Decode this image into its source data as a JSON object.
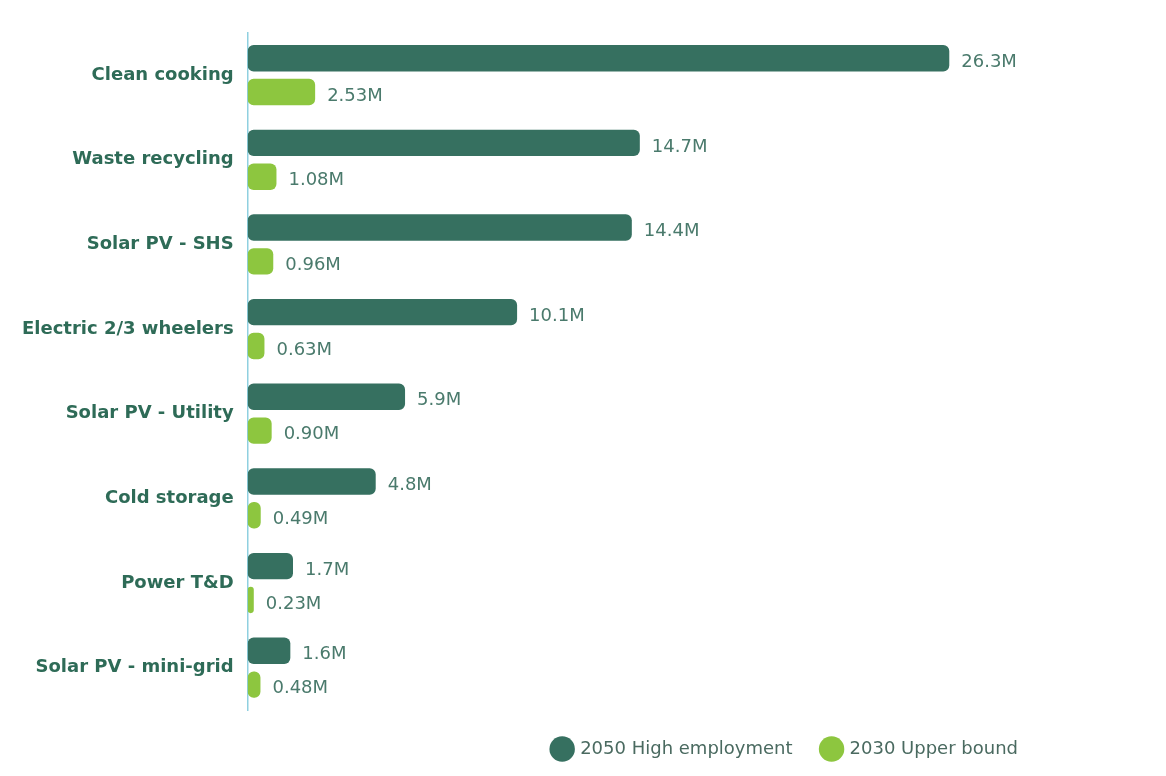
{
  "chart_data": {
    "type": "bar",
    "orientation": "horizontal",
    "categories": [
      "Clean cooking",
      "Waste recycling",
      "Solar PV - SHS",
      "Electric 2/3 wheelers",
      "Solar PV - Utility",
      "Cold storage",
      "Power T&D",
      "Solar PV - mini-grid"
    ],
    "series": [
      {
        "name": "2050 High employment",
        "color": "#367060",
        "values": [
          26.3,
          14.7,
          14.4,
          10.1,
          5.9,
          4.8,
          1.7,
          1.6
        ],
        "value_labels": [
          "26.3M",
          "14.7M",
          "14.4M",
          "10.1M",
          "5.9M",
          "4.8M",
          "1.7M",
          "1.6M"
        ]
      },
      {
        "name": "2030 Upper bound",
        "color": "#8dc63f",
        "values": [
          2.53,
          1.08,
          0.96,
          0.63,
          0.9,
          0.49,
          0.23,
          0.48
        ],
        "value_labels": [
          "2.53M",
          "1.08M",
          "0.96M",
          "0.63M",
          "0.90M",
          "0.49M",
          "0.23M",
          "0.48M"
        ]
      }
    ],
    "legend": "bottom right",
    "grid": false,
    "tick_labels": "y"
  }
}
